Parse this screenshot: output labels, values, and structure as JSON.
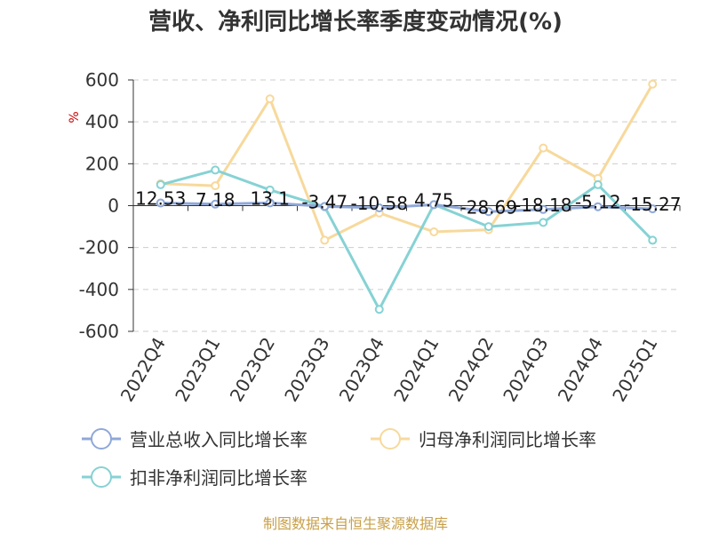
{
  "chart_data": {
    "type": "line",
    "title": "营收、净利同比增长率季度变动情况(%)",
    "ylabel": "%",
    "categories": [
      "2022Q4",
      "2023Q1",
      "2023Q2",
      "2023Q3",
      "2023Q4",
      "2024Q1",
      "2024Q2",
      "2024Q3",
      "2024Q4",
      "2025Q1"
    ],
    "ylim": [
      -600,
      600
    ],
    "yticks": [
      600,
      400,
      200,
      0,
      -200,
      -400,
      -600
    ],
    "ytick_labels": [
      "600",
      "400",
      "200",
      "0",
      "-200",
      "-400",
      "-600"
    ],
    "grid": true,
    "legend_position": "bottom",
    "series": [
      {
        "name": "营业总收入同比增长率",
        "color": "#8fa8d8",
        "values": [
          12.53,
          7.18,
          13.1,
          -3.47,
          -10.58,
          4.75,
          -28.69,
          -18.18,
          -5.12,
          -15.27
        ],
        "labels": [
          "12.53",
          "7.18",
          "13.1",
          "-3.47",
          "-10.58",
          "4.75",
          "-28.69",
          "-18.18",
          "-5.12",
          "-15.27"
        ]
      },
      {
        "name": "归母净利润同比增长率",
        "color": "#f7d99c",
        "values": [
          105,
          95,
          510,
          -165,
          -35,
          -125,
          -115,
          275,
          130,
          580
        ]
      },
      {
        "name": "扣非净利润同比增长率",
        "color": "#86d2d4",
        "values": [
          100,
          170,
          75,
          -5,
          -495,
          5,
          -100,
          -80,
          100,
          -165
        ]
      }
    ]
  },
  "source": "制图数据来自恒生聚源数据库"
}
